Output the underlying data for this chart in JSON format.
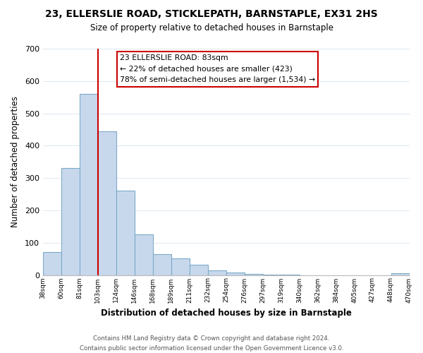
{
  "title": "23, ELLERSLIE ROAD, STICKLEPATH, BARNSTAPLE, EX31 2HS",
  "subtitle": "Size of property relative to detached houses in Barnstaple",
  "xlabel": "Distribution of detached houses by size in Barnstaple",
  "ylabel": "Number of detached properties",
  "bar_values": [
    70,
    330,
    560,
    445,
    260,
    125,
    65,
    52,
    32,
    15,
    8,
    3,
    2,
    1,
    0,
    0,
    0,
    0,
    0,
    5
  ],
  "bin_labels": [
    "38sqm",
    "60sqm",
    "81sqm",
    "103sqm",
    "124sqm",
    "146sqm",
    "168sqm",
    "189sqm",
    "211sqm",
    "232sqm",
    "254sqm",
    "276sqm",
    "297sqm",
    "319sqm",
    "340sqm",
    "362sqm",
    "384sqm",
    "405sqm",
    "427sqm",
    "448sqm",
    "470sqm"
  ],
  "bar_color": "#c8d8ec",
  "bar_edge_color": "#7baac8",
  "marker_line_color": "#cc0000",
  "marker_bin_index": 2,
  "ylim": [
    0,
    700
  ],
  "yticks": [
    0,
    100,
    200,
    300,
    400,
    500,
    600,
    700
  ],
  "annotation_title": "23 ELLERSLIE ROAD: 83sqm",
  "annotation_line1": "← 22% of detached houses are smaller (423)",
  "annotation_line2": "78% of semi-detached houses are larger (1,534) →",
  "footer_line1": "Contains HM Land Registry data © Crown copyright and database right 2024.",
  "footer_line2": "Contains public sector information licensed under the Open Government Licence v3.0.",
  "background_color": "#ffffff",
  "grid_color": "#dce8f0"
}
